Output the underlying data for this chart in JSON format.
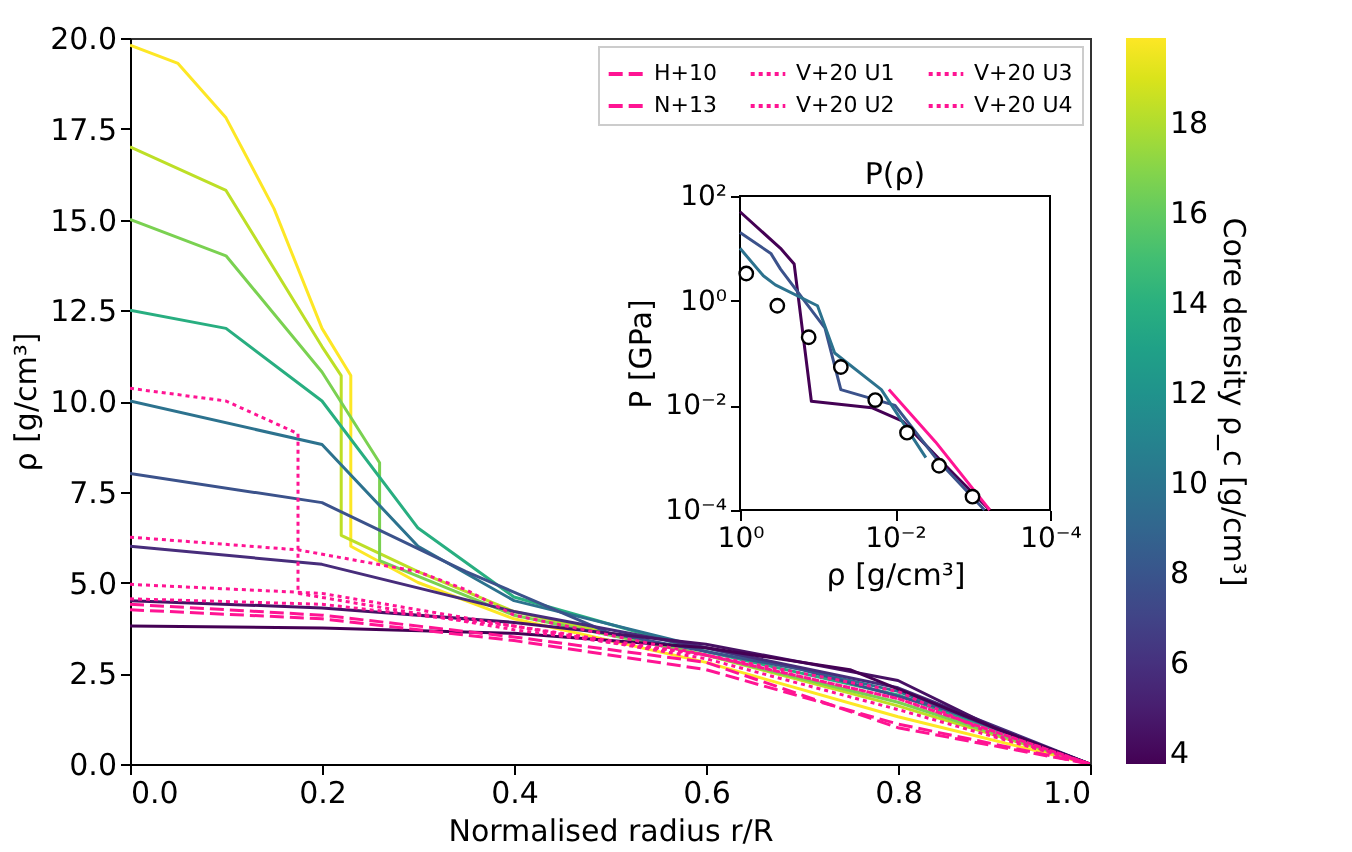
{
  "chart_data": [
    {
      "type": "line",
      "xlabel": "Normalised radius r/R",
      "ylabel": "ρ [g/cm³]",
      "clabel": "Core density ρ_c [g/cm³]",
      "xlim": [
        0,
        1
      ],
      "ylim": [
        0,
        20
      ],
      "xticks": [
        {
          "value": 0,
          "label": "0.0"
        },
        {
          "value": 0.2,
          "label": "0.2"
        },
        {
          "value": 0.4,
          "label": "0.4"
        },
        {
          "value": 0.6,
          "label": "0.6"
        },
        {
          "value": 0.8,
          "label": "0.8"
        },
        {
          "value": 1,
          "label": "1.0"
        }
      ],
      "yticks": [
        {
          "value": 0,
          "label": "0.0"
        },
        2.5,
        {
          "value": 5,
          "label": "5.0"
        },
        7.5,
        {
          "value": 10,
          "label": "10.0"
        },
        12.5,
        {
          "value": 15,
          "label": "15.0"
        },
        17.5,
        {
          "value": 20,
          "label": "20.0"
        }
      ],
      "clim": [
        3.75,
        19.9
      ],
      "cticks": [
        4,
        6,
        8,
        10,
        12,
        14,
        16,
        18
      ],
      "grid": false,
      "legend": "top right",
      "series": [
        {
          "color": "#fde725",
          "x": [
            0,
            0.05,
            0.1,
            0.15,
            0.2,
            0.23,
            0.23,
            0.3,
            0.4,
            0.6,
            0.8,
            1
          ],
          "values": [
            19.8,
            19.3,
            17.8,
            15.3,
            12.0,
            10.7,
            6.0,
            5.0,
            4.0,
            2.8,
            1.3,
            0
          ]
        },
        {
          "color": "#bddf26",
          "x": [
            0,
            0.1,
            0.2,
            0.22,
            0.22,
            0.3,
            0.4,
            0.6,
            0.8,
            1
          ],
          "values": [
            17,
            15.8,
            11.5,
            10.7,
            6.3,
            5.3,
            4.2,
            3.0,
            1.6,
            0
          ]
        },
        {
          "color": "#7ad151",
          "x": [
            0,
            0.1,
            0.2,
            0.26,
            0.26,
            0.4,
            0.6,
            0.8,
            1
          ],
          "values": [
            15,
            14,
            10.8,
            8.3,
            5.6,
            4.1,
            3.0,
            1.7,
            0
          ]
        },
        {
          "color": "#28ae80",
          "x": [
            0,
            0.1,
            0.2,
            0.3,
            0.4,
            0.6,
            0.8,
            1
          ],
          "values": [
            12.5,
            12,
            10,
            6.5,
            4.6,
            3.1,
            1.9,
            0
          ]
        },
        {
          "color": "#2c728e",
          "x": [
            0,
            0.2,
            0.3,
            0.4,
            0.6,
            0.8,
            1
          ],
          "values": [
            10,
            8.8,
            6.0,
            4.5,
            3.2,
            2.0,
            0
          ]
        },
        {
          "color": "#3b528b",
          "x": [
            0,
            0.2,
            0.35,
            0.5,
            0.7,
            0.85,
            1
          ],
          "values": [
            8,
            7.2,
            5.3,
            3.6,
            2.6,
            1.5,
            0
          ]
        },
        {
          "color": "#472d7b",
          "x": [
            0,
            0.2,
            0.4,
            0.6,
            0.8,
            1
          ],
          "values": [
            6,
            5.5,
            4.2,
            3.2,
            2.1,
            0
          ]
        },
        {
          "color": "#471164",
          "x": [
            0,
            0.2,
            0.4,
            0.6,
            0.8,
            0.9,
            1
          ],
          "values": [
            4.5,
            4.3,
            3.9,
            3.3,
            2.3,
            1.0,
            0
          ]
        },
        {
          "color": "#440154",
          "x": [
            0,
            0.2,
            0.4,
            0.6,
            0.75,
            0.9,
            1
          ],
          "values": [
            3.8,
            3.75,
            3.6,
            3.2,
            2.6,
            1.0,
            0
          ]
        },
        {
          "name": "H+10",
          "color": "#ff1493",
          "line_style": "dashed",
          "x": [
            0,
            0.2,
            0.4,
            0.6,
            0.8,
            1
          ],
          "values": [
            4.4,
            4.1,
            3.5,
            2.8,
            1.0,
            0
          ]
        },
        {
          "name": "N+13",
          "color": "#ff1493",
          "line_style": "dashed",
          "x": [
            0,
            0.2,
            0.4,
            0.6,
            0.8,
            1
          ],
          "values": [
            4.25,
            4.0,
            3.4,
            2.6,
            1.1,
            0
          ]
        },
        {
          "name": "V+20 U1",
          "color": "#ff1493",
          "line_style": "dotted",
          "x": [
            0,
            0.1,
            0.175,
            0.175,
            0.4,
            0.6,
            0.8,
            0.9,
            1
          ],
          "values": [
            10.35,
            10.0,
            9.1,
            4.7,
            3.7,
            3.0,
            2.0,
            0.8,
            0
          ]
        },
        {
          "name": "V+20 U2",
          "color": "#ff1493",
          "line_style": "dotted",
          "x": [
            0,
            0.175,
            0.3,
            0.35,
            0.4,
            0.6,
            0.8,
            1
          ],
          "values": [
            6.25,
            5.9,
            5.3,
            4.8,
            4.1,
            3.0,
            1.8,
            0
          ]
        },
        {
          "name": "V+20 U3",
          "color": "#ff1493",
          "line_style": "dotted",
          "x": [
            0,
            0.2,
            0.4,
            0.6,
            0.8,
            1
          ],
          "values": [
            4.95,
            4.7,
            3.8,
            2.9,
            1.5,
            0
          ]
        },
        {
          "name": "V+20 U4",
          "color": "#ff1493",
          "line_style": "dotted",
          "x": [
            0,
            0.2,
            0.4,
            0.6,
            0.8,
            1
          ],
          "values": [
            4.55,
            4.4,
            3.8,
            3.0,
            1.8,
            0
          ]
        }
      ]
    },
    {
      "type": "line",
      "title": "P(ρ)",
      "xlabel": "ρ [g/cm³]",
      "ylabel": "P [GPa]",
      "log": "xy",
      "xlim": [
        1,
        0.0001
      ],
      "ylim": [
        0.0001,
        100
      ],
      "xticks": [
        {
          "value": 1,
          "label": "10⁰"
        },
        {
          "value": 0.01,
          "label": "10⁻²"
        },
        {
          "value": 0.0001,
          "label": "10⁻⁴"
        }
      ],
      "yticks": [
        {
          "value": 0.0001,
          "label": "10⁻⁴"
        },
        {
          "value": 0.01,
          "label": "10⁻²"
        },
        {
          "value": 1,
          "label": "10⁰"
        },
        {
          "value": 100,
          "label": "10²"
        }
      ],
      "grid": false,
      "series": [
        {
          "color": "#440154",
          "x": [
            1,
            0.3,
            0.2,
            0.12,
            0.02,
            0.008,
            0.002,
            0.0006
          ],
          "values": [
            50,
            10,
            5,
            0.012,
            0.009,
            0.005,
            0.0006,
            0.0001
          ]
        },
        {
          "color": "#3b528b",
          "x": [
            1,
            0.4,
            0.3,
            0.08,
            0.05,
            0.01,
            0.003,
            0.0007
          ],
          "values": [
            20,
            8,
            4,
            0.3,
            0.02,
            0.01,
            0.001,
            0.0001
          ]
        },
        {
          "color": "#2c728e",
          "x": [
            1,
            0.5,
            0.35,
            0.1,
            0.06,
            0.015,
            0.004
          ],
          "values": [
            10,
            3,
            2,
            0.8,
            0.1,
            0.02,
            0.001
          ]
        },
        {
          "color": "#ff1493",
          "x": [
            0.012,
            0.003,
            0.0006
          ],
          "values": [
            0.02,
            0.002,
            0.0001
          ]
        },
        {
          "type": "scatter",
          "color": "#ffffff",
          "marker": "circle",
          "x": [
            0.83,
            0.33,
            0.13,
            0.05,
            0.018,
            0.007,
            0.0027,
            0.001
          ],
          "values": [
            3.3,
            0.8,
            0.2,
            0.054,
            0.0126,
            0.003,
            0.0007,
            0.00018
          ]
        }
      ]
    }
  ]
}
